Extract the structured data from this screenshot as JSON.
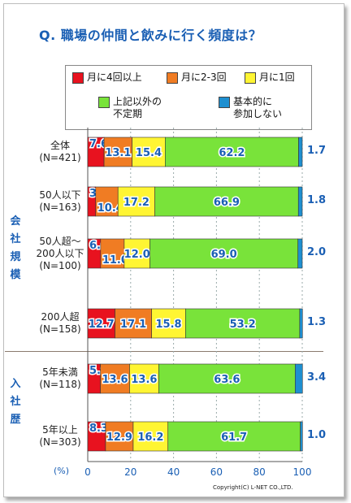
{
  "title": "Q. 職場の仲間と飲みに行く頻度は？",
  "legend": [
    {
      "label": "月に4回以上",
      "color": "#e8121f"
    },
    {
      "label": "月に2-3回",
      "color": "#f07c23"
    },
    {
      "label": "月に1回",
      "color": "#fff533"
    },
    {
      "label": "上記以外の\n不定期",
      "color": "#79e33a"
    },
    {
      "label": "基本的に\n参加しない",
      "color": "#1e8fd0"
    }
  ],
  "groups": {
    "company_size": "会社規模",
    "tenure": "入社歴"
  },
  "axis": {
    "percent_label": "(%)",
    "ticks": [
      "0",
      "20",
      "40",
      "60",
      "80",
      "100"
    ]
  },
  "copyright": "Copyright(C) L-NET CO.,LTD.",
  "chart_data": {
    "type": "bar",
    "orientation": "horizontal",
    "stacked": true,
    "title": "Q. 職場の仲間と飲みに行く頻度は？",
    "xlabel": "(%)",
    "xlim": [
      0,
      100
    ],
    "categories": [
      "全体\n(N=421)",
      "50人以下\n(N=163)",
      "50人超～\n200人以下\n(N=100)",
      "200人超\n(N=158)",
      "5年未満\n(N=118)",
      "5年以上\n(N=303)"
    ],
    "series": [
      {
        "name": "月に4回以上",
        "values": [
          7.6,
          3.7,
          6.0,
          12.7,
          5.9,
          8.3
        ]
      },
      {
        "name": "月に2-3回",
        "values": [
          13.1,
          10.4,
          11.0,
          17.1,
          13.6,
          12.9
        ]
      },
      {
        "name": "月に1回",
        "values": [
          15.4,
          17.2,
          12.0,
          15.8,
          13.6,
          16.2
        ]
      },
      {
        "name": "上記以外の不定期",
        "values": [
          62.2,
          66.9,
          69.0,
          53.2,
          63.6,
          61.7
        ]
      },
      {
        "name": "基本的に参加しない",
        "values": [
          1.7,
          1.8,
          2.0,
          1.3,
          3.4,
          1.0
        ]
      }
    ],
    "legend_position": "top",
    "grid": true
  }
}
